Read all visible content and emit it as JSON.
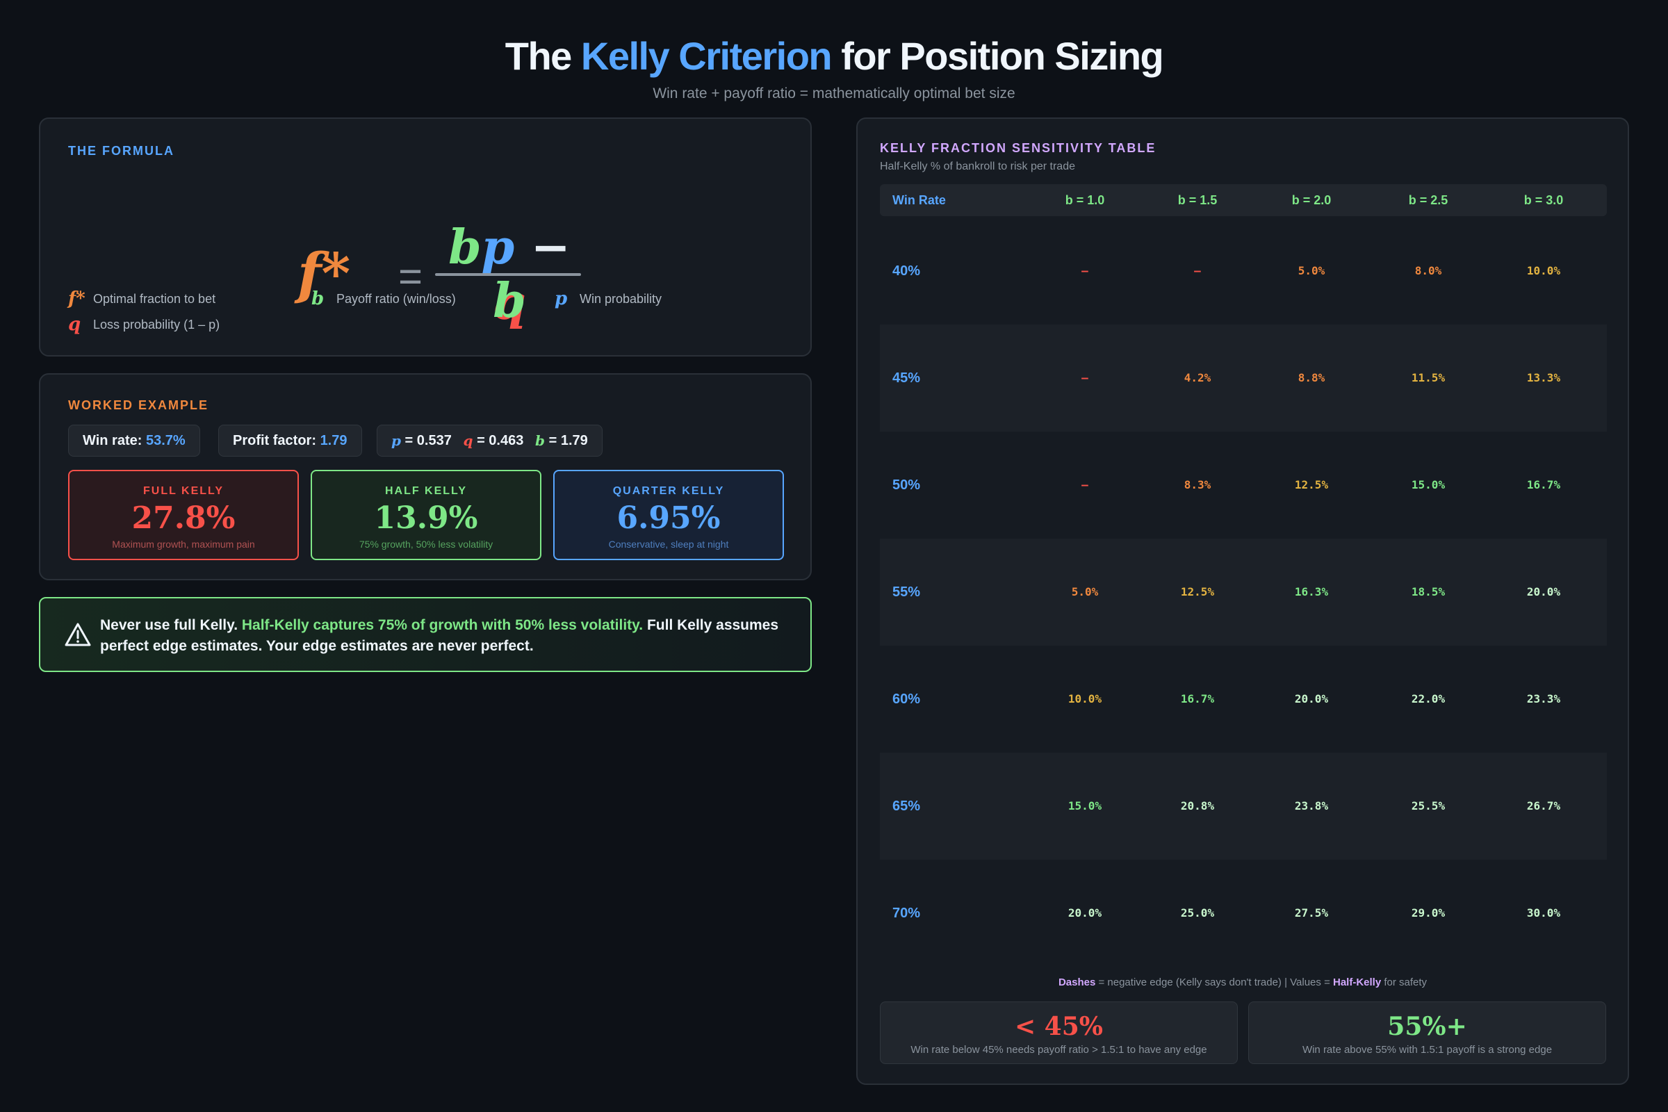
{
  "header": {
    "title_pre": "The",
    "title_accent": "Kelly Criterion",
    "title_post": "for Position Sizing",
    "subtitle": "Win rate + payoff ratio = mathematically optimal bet size"
  },
  "formula": {
    "label": "THE FORMULA",
    "lhs": "f*",
    "eq": "=",
    "num_b": "b",
    "num_p": "p",
    "num_minus": " − ",
    "num_q": "q",
    "den": "b",
    "legend": [
      {
        "sym": "f*",
        "text": "Optimal fraction to bet",
        "color": "#f0883e"
      },
      {
        "sym": "b",
        "text": "Payoff ratio (win/loss)",
        "color": "#7ee787"
      },
      {
        "sym": "p",
        "text": "Win probability",
        "color": "#58a6ff"
      },
      {
        "sym": "q",
        "text": "Loss probability (1 – p)",
        "color": "#f85149"
      }
    ]
  },
  "example": {
    "label": "WORKED EXAMPLE",
    "win_rate_label": "Win rate:",
    "win_rate_value": "53.7%",
    "profit_factor_label": "Profit factor:",
    "profit_factor_value": "1.79",
    "p_sym": "p",
    "p_val": "= 0.537",
    "q_sym": "q",
    "q_val": "= 0.463",
    "b_sym": "b",
    "b_val": "= 1.79",
    "cards": {
      "full": {
        "label": "FULL KELLY",
        "value": "27.8%",
        "desc": "Maximum growth, maximum pain"
      },
      "half": {
        "label": "HALF KELLY",
        "value": "13.9%",
        "desc": "75% growth, 50% less volatility"
      },
      "quarter": {
        "label": "QUARTER KELLY",
        "value": "6.95%",
        "desc": "Conservative, sleep at night"
      }
    }
  },
  "warning": {
    "icon": "warning-triangle-icon",
    "lead": "Never use full Kelly. ",
    "highlight": "Half-Kelly captures 75% of growth with 50% less volatility.",
    "tail": " Full Kelly assumes perfect edge estimates. Your edge estimates are never perfect."
  },
  "table": {
    "label": "KELLY FRACTION SENSITIVITY TABLE",
    "subtitle": "Half-Kelly % of bankroll to risk per trade",
    "first_header": "Win Rate",
    "columns": [
      "b = 1.0",
      "b = 1.5",
      "b = 2.0",
      "b = 2.5",
      "b = 3.0"
    ],
    "rows": [
      {
        "label": "40%",
        "cells": [
          "–",
          "–",
          "5.0%",
          "8.0%",
          "10.0%"
        ]
      },
      {
        "label": "45%",
        "cells": [
          "–",
          "4.2%",
          "8.8%",
          "11.5%",
          "13.3%"
        ]
      },
      {
        "label": "50%",
        "cells": [
          "–",
          "8.3%",
          "12.5%",
          "15.0%",
          "16.7%"
        ]
      },
      {
        "label": "55%",
        "cells": [
          "5.0%",
          "12.5%",
          "16.3%",
          "18.5%",
          "20.0%"
        ]
      },
      {
        "label": "60%",
        "cells": [
          "10.0%",
          "16.7%",
          "20.0%",
          "22.0%",
          "23.3%"
        ]
      },
      {
        "label": "65%",
        "cells": [
          "15.0%",
          "20.8%",
          "23.8%",
          "25.5%",
          "26.7%"
        ]
      },
      {
        "label": "70%",
        "cells": [
          "20.0%",
          "25.0%",
          "27.5%",
          "29.0%",
          "30.0%"
        ]
      }
    ],
    "colors": {
      "dash": "#f85149",
      "low": "#f0883e",
      "mid": "#e3b341",
      "green": "#7ee787",
      "pale": "#c9f7cd"
    },
    "footnote": {
      "dash_word": "Dashes",
      "dash_text": " = negative edge (Kelly says don't trade)  |  Values = ",
      "hk_word": "Half-Kelly",
      "hk_text": " for safety"
    },
    "stats": {
      "low": {
        "value": "< 45%",
        "desc": "Win rate below 45% needs payoff ratio > 1.5:1 to have any edge"
      },
      "high": {
        "value": "55%+",
        "desc": "Win rate above 55% with 1.5:1 payoff is a strong edge"
      }
    }
  }
}
